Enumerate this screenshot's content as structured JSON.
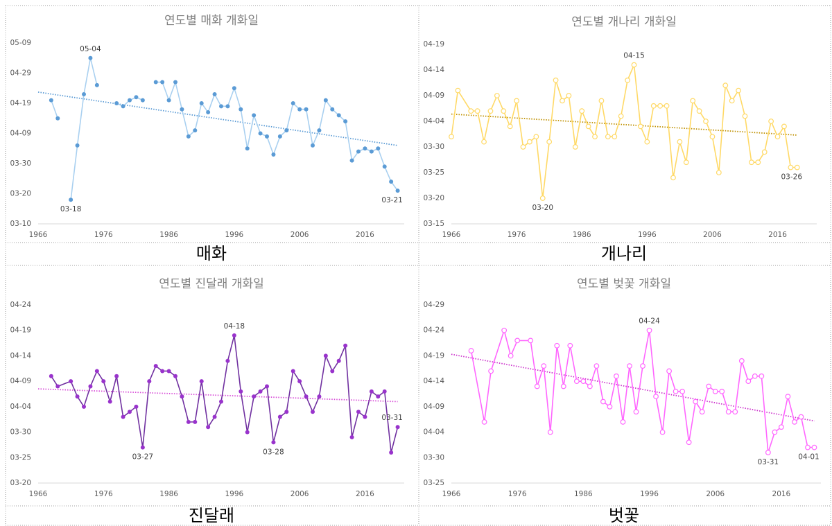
{
  "chart_data": [
    {
      "type": "line",
      "title": "연도별 매화 개화일",
      "x": [
        1968,
        1969,
        1970,
        1971,
        1972,
        1973,
        1974,
        1975,
        1976,
        1977,
        1978,
        1979,
        1980,
        1981,
        1982,
        1983,
        1984,
        1985,
        1986,
        1987,
        1988,
        1989,
        1990,
        1991,
        1992,
        1993,
        1994,
        1995,
        1996,
        1997,
        1998,
        1999,
        2000,
        2001,
        2002,
        2003,
        2004,
        2005,
        2006,
        2007,
        2008,
        2009,
        2010,
        2011,
        2012,
        2013,
        2014,
        2015,
        2016,
        2017,
        2018,
        2019,
        2020,
        2021
      ],
      "series": [
        {
          "color": "#a9d0f0",
          "marker_color": "#5b9bd5",
          "marker": "filled",
          "values": [
            110,
            104,
            null,
            77,
            95,
            112,
            124,
            115,
            null,
            null,
            109,
            108,
            110,
            111,
            110,
            null,
            116,
            116,
            110,
            116,
            107,
            98,
            100,
            109,
            106,
            112,
            108,
            108,
            114,
            107,
            94,
            105,
            99,
            98,
            92,
            98,
            100,
            109,
            107,
            107,
            95,
            100,
            110,
            107,
            105,
            103,
            90,
            93,
            94,
            93,
            94,
            88,
            83,
            80
          ],
          "value_labels": [
            null,
            null,
            null,
            "03-18",
            null,
            null,
            "05-04",
            null,
            null,
            null,
            null,
            null,
            null,
            null,
            null,
            null,
            null,
            null,
            null,
            null,
            null,
            null,
            null,
            null,
            null,
            null,
            null,
            null,
            null,
            null,
            null,
            null,
            null,
            null,
            null,
            null,
            null,
            null,
            null,
            null,
            null,
            null,
            null,
            null,
            null,
            null,
            null,
            null,
            null,
            null,
            null,
            null,
            null,
            "03-21"
          ]
        }
      ],
      "trendline": {
        "x": [
          1966,
          2021
        ],
        "values": [
          112.7,
          95
        ],
        "color": "#5b9bd5",
        "style": "dotted"
      },
      "xlim": [
        1966,
        2022
      ],
      "xticks": [
        1966,
        1976,
        1986,
        1996,
        2006,
        2016
      ],
      "ylim": [
        69,
        129
      ],
      "yticks": [
        {
          "value": 69,
          "label": "03-10"
        },
        {
          "value": 79,
          "label": "03-20"
        },
        {
          "value": 89,
          "label": "03-30"
        },
        {
          "value": 99,
          "label": "04-09"
        },
        {
          "value": 109,
          "label": "04-19"
        },
        {
          "value": 119,
          "label": "04-29"
        },
        {
          "value": 129,
          "label": "05-09"
        }
      ],
      "grid": false
    },
    {
      "type": "line",
      "title": "연도별 개나리 개화일",
      "x": [
        1966,
        1967,
        1969,
        1970,
        1971,
        1972,
        1973,
        1974,
        1975,
        1976,
        1977,
        1978,
        1979,
        1980,
        1981,
        1982,
        1983,
        1984,
        1985,
        1986,
        1987,
        1988,
        1989,
        1990,
        1991,
        1992,
        1993,
        1994,
        1995,
        1996,
        1997,
        1998,
        1999,
        2000,
        2001,
        2002,
        2003,
        2004,
        2005,
        2006,
        2007,
        2008,
        2009,
        2010,
        2011,
        2012,
        2013,
        2014,
        2015,
        2016,
        2017,
        2018,
        2019
      ],
      "series": [
        {
          "color": "#ffd966",
          "marker_color": "#ffd966",
          "marker": "hollow",
          "values": [
            91,
            100,
            96,
            96,
            90,
            96,
            99,
            96,
            93,
            98,
            89,
            90,
            91,
            79,
            90,
            102,
            98,
            99,
            89,
            96,
            93,
            91,
            98,
            91,
            91,
            95,
            102,
            105,
            93,
            90,
            97,
            97,
            97,
            83,
            90,
            86,
            98,
            96,
            94,
            91,
            84,
            101,
            98,
            100,
            95,
            86,
            86,
            88,
            94,
            91,
            93,
            85,
            85
          ],
          "value_labels": [
            null,
            null,
            null,
            null,
            null,
            null,
            null,
            null,
            null,
            null,
            null,
            null,
            null,
            "03-20",
            null,
            null,
            null,
            null,
            null,
            null,
            null,
            null,
            null,
            null,
            null,
            null,
            null,
            "04-15",
            null,
            null,
            null,
            null,
            null,
            null,
            null,
            null,
            null,
            null,
            null,
            null,
            null,
            null,
            null,
            null,
            null,
            null,
            null,
            null,
            null,
            null,
            null,
            null,
            "03-26"
          ]
        }
      ],
      "trendline": {
        "x": [
          1966,
          2019
        ],
        "values": [
          95.4,
          91.3
        ],
        "color": "#bf9000",
        "style": "dotted"
      },
      "xlim": [
        1966,
        2022
      ],
      "xticks": [
        1966,
        1976,
        1986,
        1996,
        2006,
        2016
      ],
      "ylim": [
        74,
        109
      ],
      "yticks": [
        {
          "value": 74,
          "label": "03-15"
        },
        {
          "value": 79,
          "label": "03-20"
        },
        {
          "value": 84,
          "label": "03-25"
        },
        {
          "value": 89,
          "label": "03-30"
        },
        {
          "value": 94,
          "label": "04-04"
        },
        {
          "value": 99,
          "label": "04-09"
        },
        {
          "value": 104,
          "label": "04-14"
        },
        {
          "value": 109,
          "label": "04-19"
        }
      ],
      "grid": false
    },
    {
      "type": "line",
      "title": "연도별 진달래 개화일",
      "x": [
        1968,
        1969,
        1971,
        1972,
        1973,
        1974,
        1975,
        1976,
        1977,
        1978,
        1979,
        1980,
        1981,
        1982,
        1983,
        1984,
        1985,
        1986,
        1987,
        1988,
        1989,
        1990,
        1991,
        1992,
        1993,
        1994,
        1995,
        1996,
        1997,
        1998,
        1999,
        2000,
        2001,
        2002,
        2003,
        2004,
        2005,
        2006,
        2007,
        2008,
        2009,
        2010,
        2011,
        2012,
        2013,
        2014,
        2015,
        2016,
        2017,
        2018,
        2019,
        2020,
        2021
      ],
      "series": [
        {
          "color": "#7030a0",
          "marker_color": "#9933cc",
          "marker": "filled",
          "values": [
            100,
            98,
            99,
            96,
            94,
            98,
            101,
            99,
            95,
            100,
            92,
            93,
            94,
            86,
            99,
            102,
            101,
            101,
            100,
            96,
            91,
            91,
            99,
            90,
            92,
            95,
            103,
            108,
            97,
            89,
            96,
            97,
            98,
            87,
            92,
            93,
            101,
            99,
            96,
            93,
            96,
            104,
            101,
            103,
            106,
            88,
            93,
            92,
            97,
            96,
            97,
            85,
            90
          ],
          "value_labels": [
            null,
            null,
            null,
            null,
            null,
            null,
            null,
            null,
            null,
            null,
            null,
            null,
            null,
            "03-27",
            null,
            null,
            null,
            null,
            null,
            null,
            null,
            null,
            null,
            null,
            null,
            null,
            null,
            "04-18",
            null,
            null,
            null,
            null,
            null,
            "03-28",
            null,
            null,
            null,
            null,
            null,
            null,
            null,
            null,
            null,
            null,
            null,
            null,
            null,
            null,
            null,
            null,
            null,
            null,
            "03-31"
          ]
        }
      ],
      "trendline": {
        "x": [
          1966,
          2021
        ],
        "values": [
          97.5,
          95
        ],
        "color": "#d84fd8",
        "style": "dotted"
      },
      "xlim": [
        1966,
        2022
      ],
      "xticks": [
        1966,
        1976,
        1986,
        1996,
        2006,
        2016
      ],
      "ylim": [
        79,
        114
      ],
      "yticks": [
        {
          "value": 79,
          "label": "03-20"
        },
        {
          "value": 84,
          "label": "03-25"
        },
        {
          "value": 89,
          "label": "03-30"
        },
        {
          "value": 94,
          "label": "04-04"
        },
        {
          "value": 99,
          "label": "04-09"
        },
        {
          "value": 104,
          "label": "04-14"
        },
        {
          "value": 109,
          "label": "04-19"
        },
        {
          "value": 114,
          "label": "04-24"
        }
      ],
      "grid": false
    },
    {
      "type": "line",
      "title": "연도별 벚꽃 개화일",
      "x": [
        1969,
        1971,
        1972,
        1974,
        1975,
        1976,
        1978,
        1979,
        1980,
        1981,
        1982,
        1983,
        1984,
        1985,
        1986,
        1987,
        1988,
        1989,
        1990,
        1991,
        1992,
        1993,
        1994,
        1995,
        1996,
        1997,
        1998,
        1999,
        2000,
        2001,
        2002,
        2003,
        2004,
        2005,
        2006,
        2007,
        2008,
        2009,
        2010,
        2011,
        2012,
        2013,
        2014,
        2015,
        2016,
        2017,
        2018,
        2019,
        2020,
        2021
      ],
      "series": [
        {
          "color": "#ff66ff",
          "marker_color": "#ff66ff",
          "marker": "hollow",
          "values": [
            110,
            96,
            106,
            114,
            109,
            112,
            112,
            103,
            107,
            94,
            111,
            103,
            111,
            104,
            104,
            103,
            107,
            100,
            99,
            105,
            96,
            107,
            98,
            107,
            114,
            101,
            94,
            106,
            102,
            102,
            92,
            100,
            98,
            103,
            102,
            102,
            98,
            98,
            108,
            104,
            105,
            105,
            90,
            94,
            95,
            101,
            96,
            97,
            91,
            91
          ],
          "value_labels": [
            null,
            null,
            null,
            null,
            null,
            null,
            null,
            null,
            null,
            null,
            null,
            null,
            null,
            null,
            null,
            null,
            null,
            null,
            null,
            null,
            null,
            null,
            null,
            null,
            "04-24",
            null,
            null,
            null,
            null,
            null,
            null,
            null,
            null,
            null,
            null,
            null,
            null,
            null,
            null,
            null,
            null,
            null,
            "03-31",
            null,
            null,
            null,
            null,
            null,
            null,
            "04-01"
          ]
        }
      ],
      "trendline": {
        "x": [
          1966,
          2021
        ],
        "values": [
          109.3,
          96.2
        ],
        "color": "#cc33cc",
        "style": "dotted"
      },
      "xlim": [
        1966,
        2022
      ],
      "xticks": [
        1966,
        1976,
        1986,
        1996,
        2006,
        2016
      ],
      "ylim": [
        84,
        119
      ],
      "yticks": [
        {
          "value": 84,
          "label": "03-25"
        },
        {
          "value": 89,
          "label": "03-30"
        },
        {
          "value": 94,
          "label": "04-04"
        },
        {
          "value": 99,
          "label": "04-09"
        },
        {
          "value": 104,
          "label": "04-14"
        },
        {
          "value": 109,
          "label": "04-19"
        },
        {
          "value": 114,
          "label": "04-24"
        },
        {
          "value": 119,
          "label": "04-29"
        }
      ],
      "grid": false
    }
  ],
  "captions": [
    "매화",
    "개나리",
    "진달래",
    "벗꽃"
  ]
}
